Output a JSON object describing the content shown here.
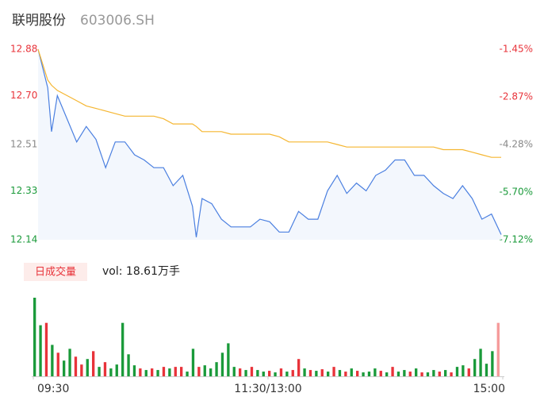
{
  "header": {
    "title": "联明股份",
    "code": "603006.SH"
  },
  "chart_data": [
    {
      "type": "line",
      "x": [
        0,
        5,
        7,
        10,
        15,
        20,
        25,
        30,
        35,
        40,
        45,
        50,
        55,
        60,
        65,
        70,
        75,
        80,
        82,
        85,
        90,
        95,
        100,
        105,
        110,
        115,
        120,
        125,
        130,
        135,
        140,
        145,
        150,
        155,
        160,
        165,
        170,
        175,
        180,
        185,
        190,
        195,
        200,
        205,
        210,
        215,
        220,
        225,
        230,
        235,
        240
      ],
      "xlim": [
        0,
        240
      ],
      "ylim": [
        12.14,
        12.88
      ],
      "yticks": [
        12.88,
        {
          "value": 12.7,
          "label": "12.70"
        },
        12.51,
        12.33,
        12.14
      ],
      "ytick_colors": [
        "#e8333a",
        "#e8333a",
        "#888888",
        "#1a9a3a",
        "#1a9a3a"
      ],
      "y2lim": [
        -7.12,
        -1.45
      ],
      "y2ticks": [
        {
          "value": -1.45,
          "label": "-1.45%"
        },
        {
          "value": -2.87,
          "label": "-2.87%"
        },
        {
          "value": -4.28,
          "label": "-4.28%"
        },
        {
          "value": -5.7,
          "label": "-5.70%"
        },
        {
          "value": -7.12,
          "label": "-7.12%"
        }
      ],
      "series": [
        {
          "color": "#4a7fe0",
          "values": [
            12.88,
            12.73,
            12.56,
            12.7,
            12.61,
            12.52,
            12.58,
            12.53,
            12.42,
            12.52,
            12.52,
            12.47,
            12.45,
            12.42,
            12.42,
            12.35,
            12.39,
            12.27,
            12.15,
            12.3,
            12.28,
            12.22,
            12.19,
            12.19,
            12.19,
            12.22,
            12.21,
            12.17,
            12.17,
            12.25,
            12.22,
            12.22,
            12.33,
            12.39,
            12.32,
            12.36,
            12.33,
            12.39,
            12.41,
            12.45,
            12.45,
            12.39,
            12.39,
            12.35,
            12.32,
            12.3,
            12.35,
            12.3,
            12.22,
            12.24,
            12.16
          ]
        },
        {
          "color": "#f5b631",
          "values": [
            12.88,
            12.76,
            12.74,
            12.72,
            12.7,
            12.68,
            12.66,
            12.65,
            12.64,
            12.63,
            12.62,
            12.62,
            12.62,
            12.62,
            12.61,
            12.59,
            12.59,
            12.59,
            12.58,
            12.56,
            12.56,
            12.56,
            12.55,
            12.55,
            12.55,
            12.55,
            12.55,
            12.54,
            12.52,
            12.52,
            12.52,
            12.52,
            12.52,
            12.51,
            12.5,
            12.5,
            12.5,
            12.5,
            12.5,
            12.5,
            12.5,
            12.5,
            12.5,
            12.5,
            12.49,
            12.49,
            12.49,
            12.48,
            12.47,
            12.46,
            12.46
          ]
        }
      ]
    },
    {
      "type": "bar",
      "title": "日成交量",
      "subtitle": "vol: 18.61万手",
      "x": [
        0,
        3,
        6,
        9,
        12,
        15,
        18,
        21,
        24,
        27,
        30,
        33,
        36,
        39,
        42,
        45,
        48,
        51,
        54,
        57,
        60,
        63,
        66,
        69,
        72,
        75,
        78,
        81,
        84,
        87,
        90,
        93,
        96,
        99,
        102,
        105,
        108,
        111,
        114,
        117,
        120,
        123,
        126,
        129,
        132,
        135,
        138,
        141,
        144,
        147,
        150,
        153,
        156,
        159,
        162,
        165,
        168,
        171,
        174,
        177,
        180,
        183,
        186,
        189,
        192,
        195,
        198,
        201,
        204,
        207,
        210,
        213,
        216,
        219,
        222,
        225,
        228,
        231,
        234,
        237
      ],
      "xlim": [
        0,
        240
      ],
      "xticks": [
        {
          "value": 0,
          "label": "09:30"
        },
        {
          "value": 120,
          "label": "11:30/13:00"
        },
        {
          "value": 240,
          "label": "15:00"
        }
      ],
      "ylim": [
        0,
        100
      ],
      "values": [
        100,
        65,
        68,
        40,
        30,
        20,
        35,
        25,
        15,
        22,
        32,
        12,
        18,
        10,
        15,
        68,
        28,
        14,
        10,
        8,
        10,
        8,
        12,
        10,
        12,
        12,
        6,
        35,
        12,
        14,
        10,
        18,
        30,
        42,
        12,
        10,
        8,
        12,
        8,
        6,
        7,
        5,
        10,
        6,
        8,
        22,
        10,
        8,
        7,
        9,
        6,
        12,
        8,
        6,
        10,
        7,
        5,
        6,
        10,
        7,
        5,
        12,
        6,
        8,
        6,
        10,
        5,
        5,
        8,
        6,
        8,
        5,
        12,
        14,
        10,
        22,
        35,
        16,
        32,
        68
      ],
      "colors": [
        "#1a9a3a",
        "#1a9a3a",
        "#e8333a",
        "#1a9a3a",
        "#e8333a",
        "#1a9a3a",
        "#1a9a3a",
        "#e8333a",
        "#e8333a",
        "#1a9a3a",
        "#e8333a",
        "#1a9a3a",
        "#e8333a",
        "#1a9a3a",
        "#1a9a3a",
        "#1a9a3a",
        "#1a9a3a",
        "#1a9a3a",
        "#e8333a",
        "#1a9a3a",
        "#e8333a",
        "#1a9a3a",
        "#e8333a",
        "#1a9a3a",
        "#e8333a",
        "#e8333a",
        "#1a9a3a",
        "#1a9a3a",
        "#e8333a",
        "#1a9a3a",
        "#1a9a3a",
        "#1a9a3a",
        "#1a9a3a",
        "#1a9a3a",
        "#1a9a3a",
        "#e8333a",
        "#1a9a3a",
        "#e8333a",
        "#1a9a3a",
        "#1a9a3a",
        "#e8333a",
        "#1a9a3a",
        "#e8333a",
        "#1a9a3a",
        "#e8333a",
        "#e8333a",
        "#1a9a3a",
        "#e8333a",
        "#1a9a3a",
        "#e8333a",
        "#1a9a3a",
        "#e8333a",
        "#1a9a3a",
        "#e8333a",
        "#1a9a3a",
        "#e8333a",
        "#1a9a3a",
        "#1a9a3a",
        "#1a9a3a",
        "#e8333a",
        "#1a9a3a",
        "#e8333a",
        "#1a9a3a",
        "#1a9a3a",
        "#e8333a",
        "#1a9a3a",
        "#e8333a",
        "#1a9a3a",
        "#1a9a3a",
        "#e8333a",
        "#1a9a3a",
        "#e8333a",
        "#1a9a3a",
        "#1a9a3a",
        "#e8333a",
        "#1a9a3a",
        "#1a9a3a",
        "#1a9a3a",
        "#1a9a3a",
        "#f59a9a"
      ]
    }
  ]
}
